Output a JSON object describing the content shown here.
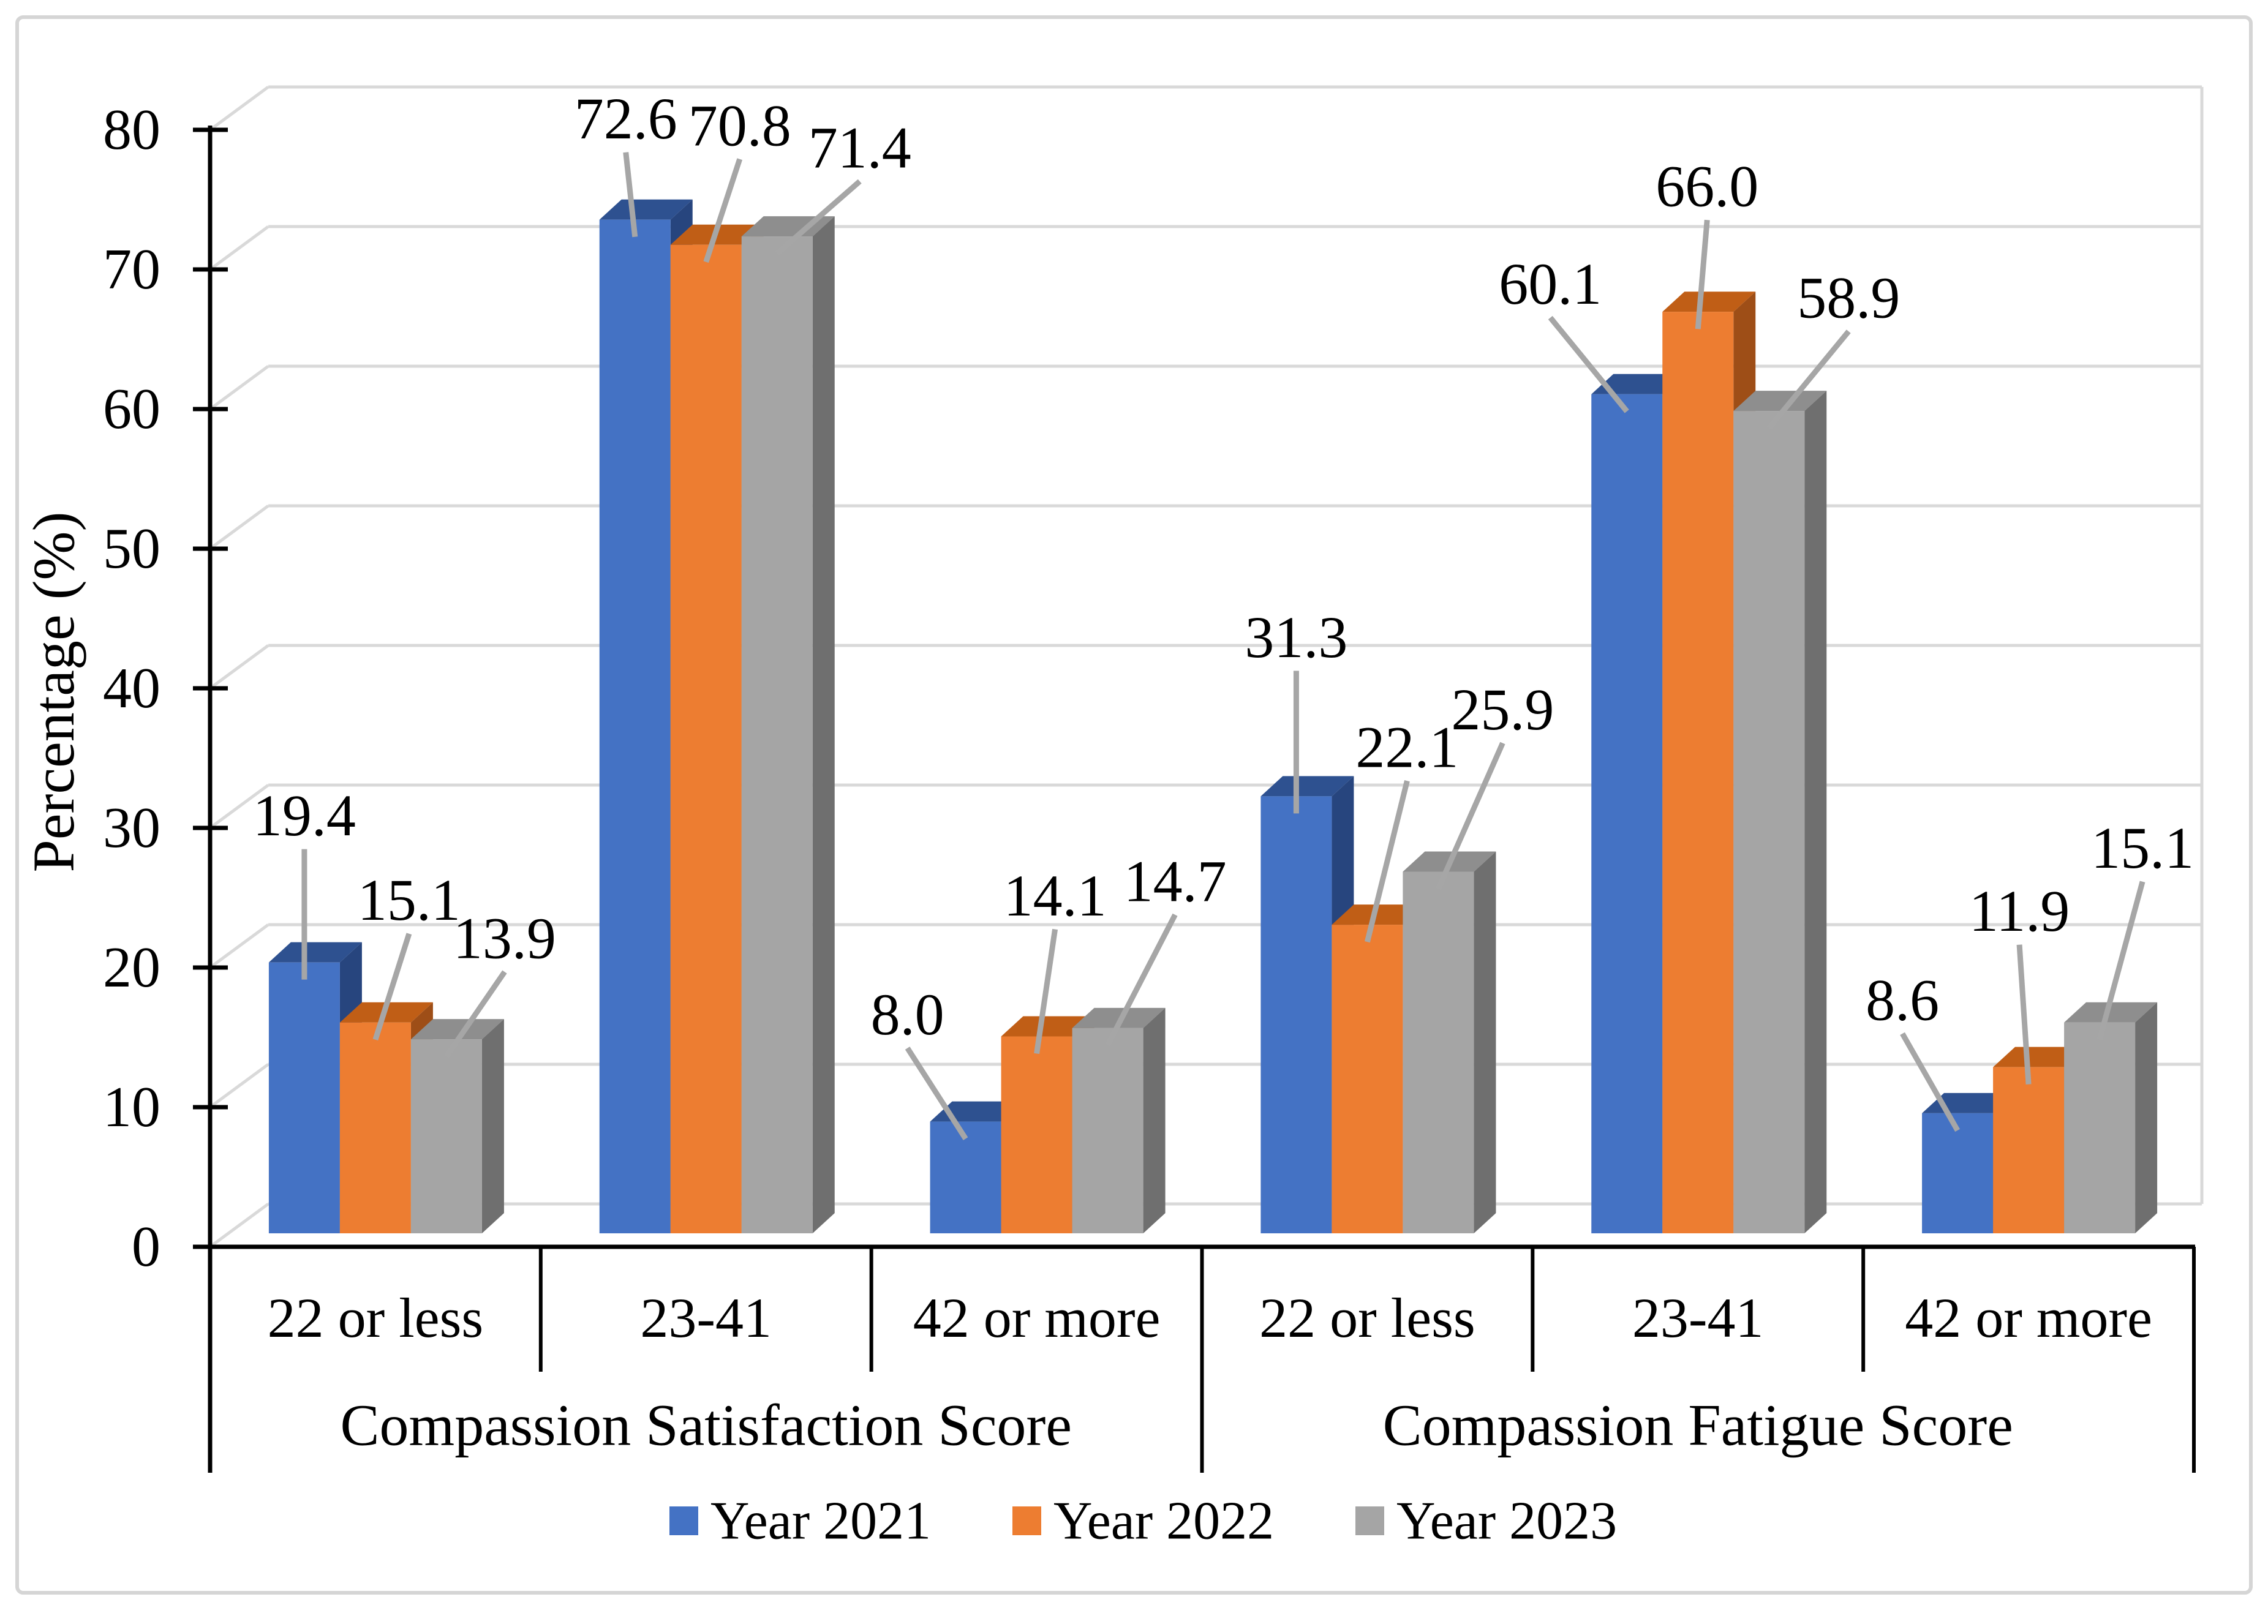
{
  "figure": {
    "background": "#ffffff",
    "border_color": "#d5d5d5"
  },
  "chart_data": {
    "type": "bar",
    "style": "3d-clustered-column",
    "title": "",
    "xlabel": "",
    "ylabel": "Percentage (%)",
    "ylim": [
      0,
      80
    ],
    "ytick_step": 10,
    "yticks": [
      0,
      10,
      20,
      30,
      40,
      50,
      60,
      70,
      80
    ],
    "gridlines": true,
    "legend_position": "bottom",
    "group_labels": [
      "Compassion Satisfaction Score",
      "Compassion Fatigue Score"
    ],
    "categories": [
      "22 or less",
      "23-41",
      "42 or more",
      "22 or less",
      "23-41",
      "42 or more"
    ],
    "series": [
      {
        "name": "Year 2021",
        "color": "#4472c4",
        "values": [
          19.4,
          72.6,
          8.0,
          31.3,
          60.1,
          8.6
        ]
      },
      {
        "name": "Year 2022",
        "color": "#ed7d31",
        "values": [
          15.1,
          70.8,
          14.1,
          22.1,
          66.0,
          11.9
        ]
      },
      {
        "name": "Year 2023",
        "color": "#a5a5a5",
        "values": [
          13.9,
          71.4,
          14.7,
          25.9,
          58.9,
          15.1
        ]
      }
    ],
    "data_labels": true,
    "data_label_format": "0.0",
    "leader_line_color": "#a6a6a6",
    "gridline_color": "#d9d9d9"
  }
}
